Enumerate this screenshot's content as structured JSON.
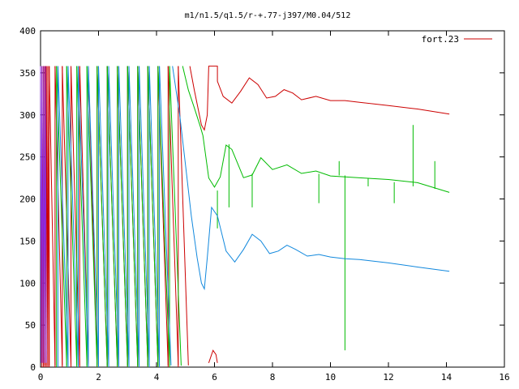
{
  "chart_data": {
    "type": "line",
    "title": "m1/n1.5/q1.5/r-+.77-j397/M0.04/512",
    "xlabel": "",
    "ylabel": "",
    "xlim": [
      0,
      16
    ],
    "ylim": [
      0,
      400
    ],
    "grid": false,
    "legend_position": "top-right",
    "x_ticks": [
      0,
      2,
      4,
      6,
      8,
      10,
      12,
      14,
      16
    ],
    "y_ticks": [
      0,
      50,
      100,
      150,
      200,
      250,
      300,
      350,
      400
    ],
    "legend": [
      {
        "label": "fort.23",
        "color": "#cc0000"
      }
    ],
    "colors": {
      "red": "#cc0000",
      "green": "#00bb00",
      "blue": "#1188dd",
      "purple": "#8a2be2"
    },
    "series": [
      {
        "color": "#cc0000",
        "wrap_crossings_x": [
          0.05,
          0.1,
          0.15,
          0.2,
          0.25,
          0.3,
          0.5,
          0.75,
          1.05,
          1.35,
          1.65,
          1.95,
          2.3,
          2.65,
          3.0,
          3.35,
          3.7,
          4.05,
          4.4,
          4.75,
          5.1
        ],
        "points": [
          [
            5.15,
            358
          ],
          [
            5.3,
            330
          ],
          [
            5.45,
            305
          ],
          [
            5.55,
            288
          ],
          [
            5.65,
            282
          ],
          [
            5.75,
            300
          ],
          [
            5.8,
            358
          ],
          [
            6.1,
            358
          ],
          [
            6.1,
            340
          ],
          [
            6.3,
            322
          ],
          [
            6.6,
            314
          ],
          [
            6.9,
            328
          ],
          [
            7.2,
            344
          ],
          [
            7.5,
            336
          ],
          [
            7.8,
            320
          ],
          [
            8.1,
            322
          ],
          [
            8.4,
            330
          ],
          [
            8.7,
            326
          ],
          [
            9.0,
            318
          ],
          [
            9.5,
            322
          ],
          [
            10.0,
            317
          ],
          [
            10.5,
            317
          ],
          [
            11.0,
            315
          ],
          [
            12.0,
            311
          ],
          [
            13.0,
            307
          ],
          [
            14.1,
            301
          ]
        ],
        "tail_low": [
          [
            5.8,
            5
          ],
          [
            5.95,
            20
          ],
          [
            6.05,
            15
          ],
          [
            6.1,
            5
          ]
        ]
      },
      {
        "color": "#00bb00",
        "wrap_crossings_x": [
          0.55,
          0.9,
          1.25,
          1.6,
          1.95,
          2.3,
          2.65,
          3.0,
          3.35,
          3.7,
          4.05,
          4.45,
          4.85
        ],
        "points": [
          [
            4.9,
            358
          ],
          [
            5.1,
            330
          ],
          [
            5.3,
            305
          ],
          [
            5.5,
            285
          ],
          [
            5.6,
            275
          ],
          [
            5.8,
            225
          ],
          [
            6.0,
            210
          ],
          [
            6.2,
            230
          ],
          [
            6.4,
            265
          ],
          [
            6.6,
            258
          ],
          [
            6.8,
            240
          ],
          [
            7.0,
            228
          ],
          [
            7.3,
            230
          ],
          [
            7.6,
            245
          ],
          [
            8.0,
            235
          ],
          [
            8.5,
            238
          ],
          [
            9.0,
            232
          ],
          [
            9.5,
            230
          ],
          [
            10.0,
            228
          ],
          [
            11.0,
            225
          ],
          [
            12.0,
            220
          ],
          [
            13.0,
            215
          ],
          [
            14.1,
            212
          ]
        ],
        "spikes": [
          [
            6.1,
            165
          ],
          [
            6.5,
            190
          ],
          [
            7.3,
            190
          ],
          [
            9.6,
            195
          ],
          [
            10.3,
            245
          ],
          [
            10.5,
            20
          ],
          [
            11.3,
            215
          ],
          [
            12.2,
            195
          ],
          [
            12.85,
            288
          ],
          [
            13.6,
            245
          ]
        ]
      },
      {
        "color": "#1188dd",
        "wrap_crossings_x": [
          0.6,
          0.95,
          1.3,
          1.65,
          2.0,
          2.35,
          2.7,
          3.05,
          3.4,
          3.75,
          4.1,
          4.5
        ],
        "points": [
          [
            4.55,
            358
          ],
          [
            4.8,
            300
          ],
          [
            5.0,
            240
          ],
          [
            5.2,
            180
          ],
          [
            5.4,
            130
          ],
          [
            5.55,
            100
          ],
          [
            5.65,
            93
          ],
          [
            5.75,
            130
          ],
          [
            5.9,
            190
          ],
          [
            6.1,
            180
          ],
          [
            6.4,
            138
          ],
          [
            6.7,
            125
          ],
          [
            7.0,
            140
          ],
          [
            7.3,
            158
          ],
          [
            7.6,
            150
          ],
          [
            7.9,
            135
          ],
          [
            8.2,
            138
          ],
          [
            8.5,
            145
          ],
          [
            8.8,
            140
          ],
          [
            9.2,
            132
          ],
          [
            9.6,
            134
          ],
          [
            10.0,
            131
          ],
          [
            10.5,
            129
          ],
          [
            11.0,
            128
          ],
          [
            12.0,
            124
          ],
          [
            13.0,
            119
          ],
          [
            14.1,
            114
          ]
        ]
      },
      {
        "color": "#8a2be2",
        "points": [
          [
            0.0,
            358
          ],
          [
            0.02,
            5
          ],
          [
            0.05,
            358
          ],
          [
            0.08,
            5
          ],
          [
            0.11,
            358
          ],
          [
            0.14,
            5
          ],
          [
            0.17,
            358
          ],
          [
            0.2,
            5
          ]
        ]
      }
    ]
  }
}
